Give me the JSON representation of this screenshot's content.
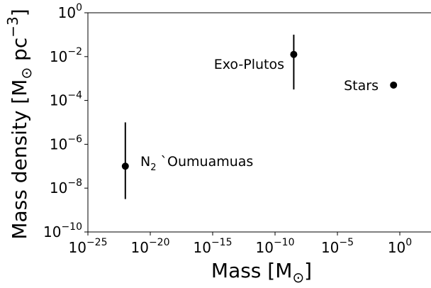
{
  "chart_data": {
    "type": "scatter",
    "xlabel": "Mass [M☉]",
    "ylabel": "Mass density [M☉ pc⁻³]",
    "xscale": "log",
    "yscale": "log",
    "xlim_log10": [
      -25,
      2.5
    ],
    "ylim_log10": [
      -10,
      0
    ],
    "x_ticks_log10": [
      -25,
      -20,
      -15,
      -10,
      -5,
      0
    ],
    "y_ticks_log10": [
      -10,
      -8,
      -6,
      -4,
      -2,
      0
    ],
    "tick_base": "10",
    "x_tick_labels": [
      "10⁻²⁵",
      "10⁻²⁰",
      "10⁻¹⁵",
      "10⁻¹⁰",
      "10⁻⁵",
      "10⁰"
    ],
    "y_tick_labels": [
      "10⁻¹⁰",
      "10⁻⁸",
      "10⁻⁶",
      "10⁻⁴",
      "10⁻²",
      "10⁰"
    ],
    "grid": false,
    "points": [
      {
        "label": "N₂ `Oumuamuas",
        "x_log10": -22.0,
        "y_log10": -7.0,
        "y_err_log10": [
          -8.5,
          -5.0
        ],
        "label_side": "right"
      },
      {
        "label": "Exo-Plutos",
        "x_log10": -8.5,
        "y_log10": -1.9,
        "y_err_log10": [
          -3.5,
          -1.0
        ],
        "label_side": "left"
      },
      {
        "label": "Stars",
        "x_log10": -0.5,
        "y_log10": -3.3,
        "y_err_log10": null,
        "label_side": "left"
      }
    ]
  },
  "text": {
    "xlabel_main": "Mass [M",
    "xlabel_sub": "⊙",
    "xlabel_end": "]",
    "ylabel_main": "Mass density [M",
    "ylabel_sub": "⊙",
    "ylabel_mid": " pc",
    "ylabel_sup": "−3",
    "ylabel_end": "]",
    "pt1_main": "N",
    "pt1_sub": "2",
    "pt1_rest": " `Oumuamuas",
    "pt2": "Exo-Plutos",
    "pt3": "Stars",
    "tick_base": "10",
    "x_exps": [
      "−25",
      "−20",
      "−15",
      "−10",
      "−5",
      "0"
    ],
    "y_exps": [
      "−10",
      "−8",
      "−6",
      "−4",
      "−2",
      "0"
    ]
  }
}
